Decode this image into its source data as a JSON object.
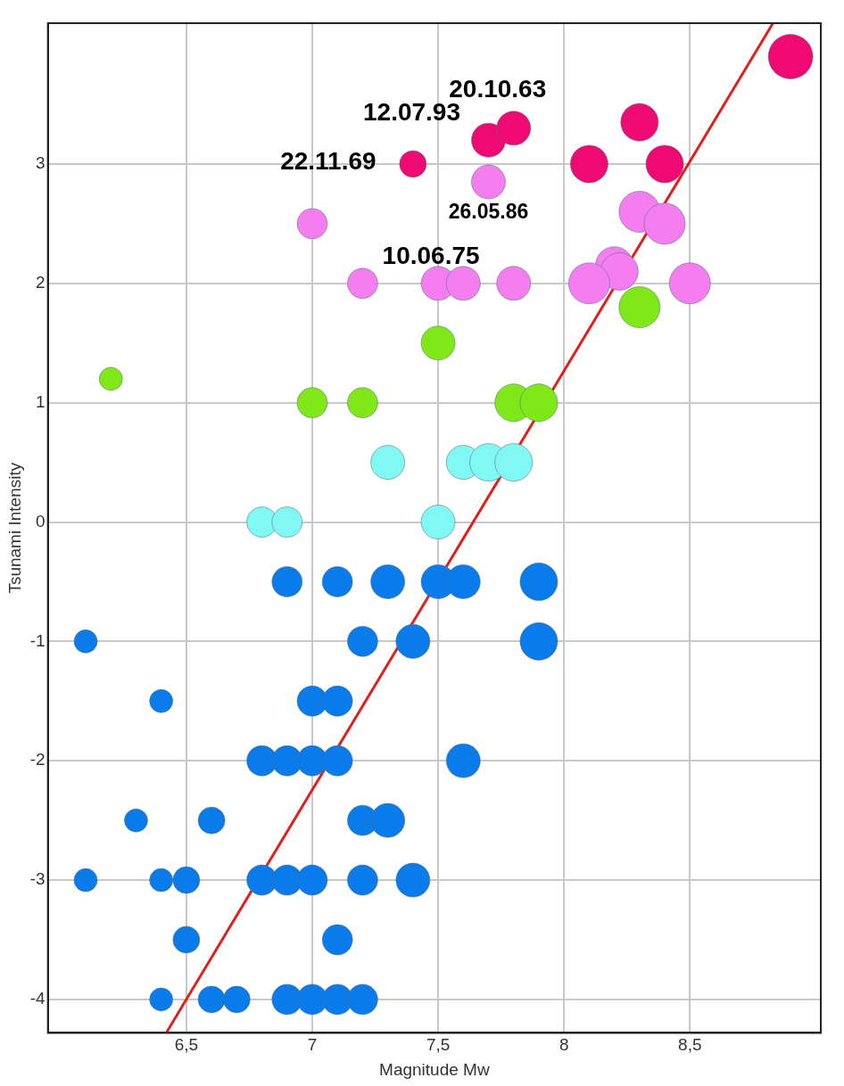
{
  "chart_data": {
    "type": "bubble",
    "xlabel": "Magnitude Mw",
    "ylabel": "Tsunami Intensity",
    "xlim": [
      5.95,
      9.02
    ],
    "ylim": [
      -4.28,
      4.18
    ],
    "xticks": [
      {
        "value": 6.5,
        "label": "6,5"
      },
      7,
      {
        "value": 7.5,
        "label": "7,5"
      },
      8,
      {
        "value": 8.5,
        "label": "8,5"
      }
    ],
    "yticks": [
      -4,
      -3,
      -2,
      -1,
      0,
      1,
      2,
      3
    ],
    "grid": true,
    "legend": false,
    "marker": "circle",
    "series": [
      {
        "color": "#0a7bea",
        "x": [
          6.9,
          7.1,
          7.3,
          7.5,
          7.6,
          7.9,
          6.1,
          7.2,
          7.4,
          7.9,
          6.4,
          7.0,
          7.1,
          6.8,
          6.9,
          7.0,
          7.1,
          7.6,
          6.3,
          6.6,
          7.2,
          7.3,
          6.1,
          6.4,
          6.5,
          6.8,
          6.9,
          7.0,
          7.2,
          7.4,
          6.5,
          7.1,
          6.4,
          6.6,
          6.7,
          6.9,
          7.0,
          7.1,
          7.2
        ],
        "values": [
          -0.5,
          -0.5,
          -0.5,
          -0.5,
          -0.5,
          -0.5,
          -1,
          -1,
          -1,
          -1,
          -1.5,
          -1.5,
          -1.5,
          -2,
          -2,
          -2,
          -2,
          -2,
          -2.5,
          -2.5,
          -2.5,
          -2.5,
          -3,
          -3,
          -3,
          -3,
          -3,
          -3,
          -3,
          -3,
          -3.5,
          -3.5,
          -4,
          -4,
          -4,
          -4,
          -4,
          -4,
          -4
        ],
        "sizes": [
          0.46,
          0.46,
          0.58,
          0.58,
          0.58,
          0.71,
          0.27,
          0.46,
          0.58,
          0.71,
          0.27,
          0.46,
          0.46,
          0.46,
          0.46,
          0.46,
          0.46,
          0.58,
          0.27,
          0.36,
          0.46,
          0.58,
          0.27,
          0.27,
          0.36,
          0.46,
          0.46,
          0.46,
          0.46,
          0.58,
          0.36,
          0.46,
          0.27,
          0.36,
          0.36,
          0.46,
          0.46,
          0.46,
          0.46
        ]
      },
      {
        "color": "#80f8f4",
        "x": [
          7.3,
          7.6,
          7.7,
          7.8,
          6.8,
          6.9,
          7.5
        ],
        "values": [
          0.5,
          0.5,
          0.5,
          0.5,
          0,
          0,
          0
        ],
        "sizes": [
          0.58,
          0.58,
          0.71,
          0.71,
          0.46,
          0.46,
          0.58
        ]
      },
      {
        "color": "#80e818",
        "x": [
          6.2,
          7.5,
          7.0,
          7.2,
          7.8,
          7.9,
          8.3
        ],
        "values": [
          1.2,
          1.5,
          1,
          1,
          1,
          1,
          1.8
        ],
        "sizes": [
          0.27,
          0.58,
          0.46,
          0.46,
          0.71,
          0.71,
          0.85
        ]
      },
      {
        "color": "#f47ef0",
        "x": [
          7.0,
          7.7,
          8.3,
          8.4,
          8.2,
          8.22,
          7.2,
          7.5,
          7.6,
          7.8,
          8.1,
          8.5
        ],
        "values": [
          2.5,
          2.85,
          2.6,
          2.5,
          2.15,
          2.1,
          2,
          2,
          2,
          2,
          2,
          2
        ],
        "sizes": [
          0.46,
          0.58,
          0.85,
          0.85,
          0.71,
          0.71,
          0.46,
          0.58,
          0.58,
          0.58,
          0.85,
          0.85
        ]
      },
      {
        "color": "#ee0a72",
        "x": [
          8.9,
          7.4,
          7.7,
          7.8,
          8.1,
          8.3,
          8.4
        ],
        "values": [
          3.9,
          3,
          3.2,
          3.3,
          3.0,
          3.35,
          3.0
        ],
        "sizes": [
          1,
          0.36,
          0.58,
          0.58,
          0.71,
          0.71,
          0.71
        ]
      },
      {
        "type": "line",
        "color": "#e0201a",
        "marker": "none",
        "x": [
          6.42,
          8.83
        ],
        "values": [
          -4.28,
          4.18
        ]
      }
    ],
    "annotations": [
      {
        "text": "20.10.63",
        "x": 7.8,
        "y": 3.3
      },
      {
        "text": "12.07.93",
        "x": 7.7,
        "y": 3.2
      },
      {
        "text": "22.11.69",
        "x": 7.4,
        "y": 3.0
      },
      {
        "text": "26.05.86",
        "x": 7.7,
        "y": 2.85
      },
      {
        "text": "10.06.75",
        "x": 7.5,
        "y": 2.0
      }
    ]
  }
}
